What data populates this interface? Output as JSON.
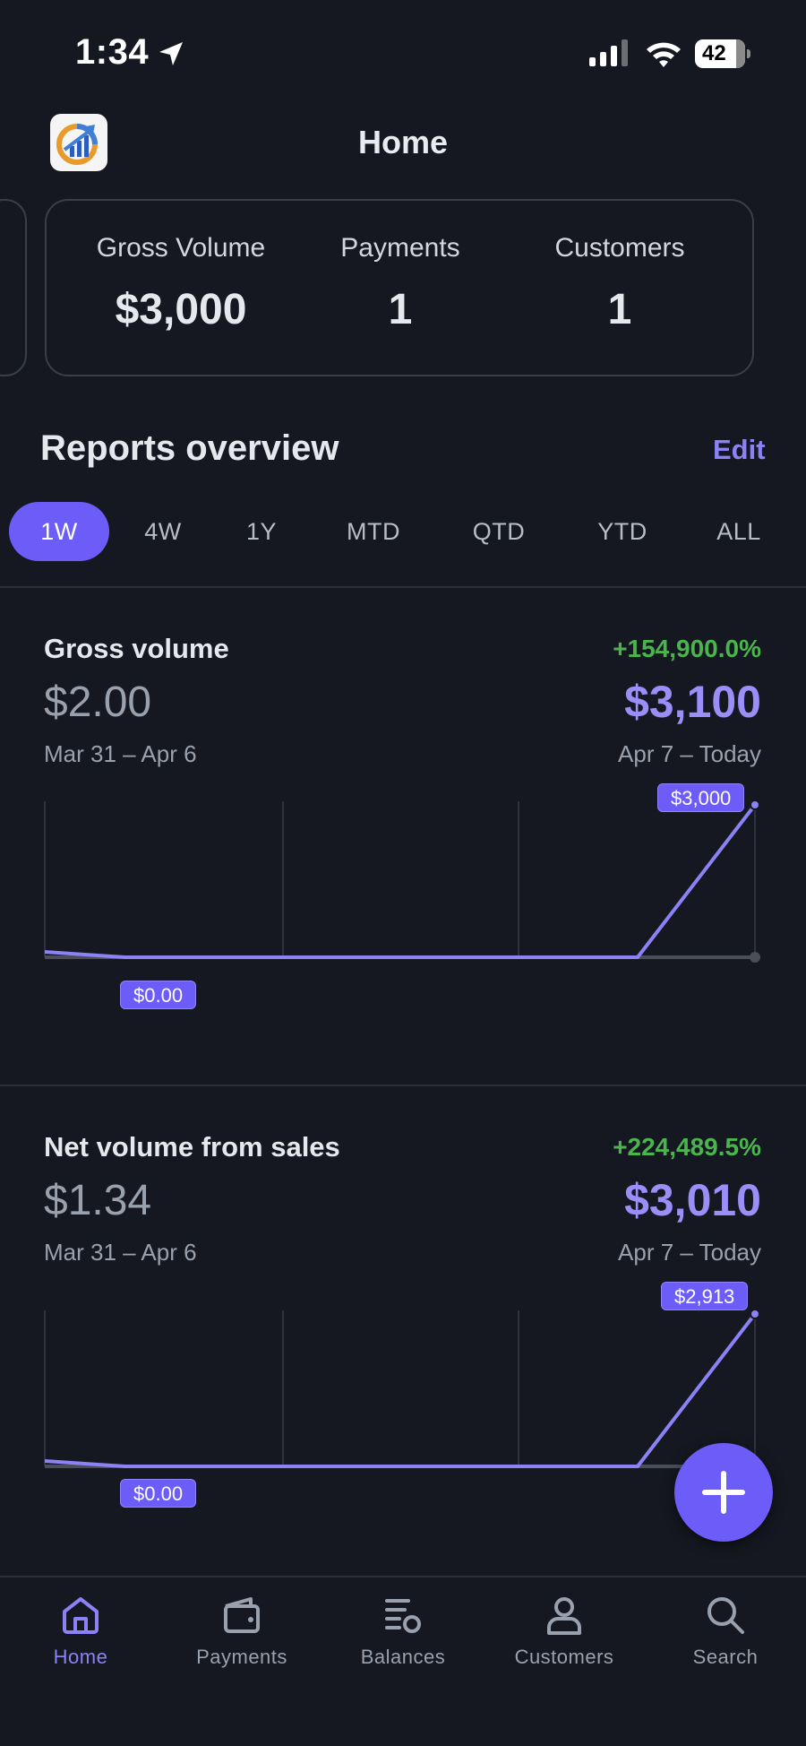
{
  "status_bar": {
    "time": "1:34",
    "battery": "42"
  },
  "header": {
    "title": "Home"
  },
  "metrics": [
    {
      "label": "Gross Volume",
      "value": "$3,000"
    },
    {
      "label": "Payments",
      "value": "1"
    },
    {
      "label": "Customers",
      "value": "1"
    }
  ],
  "reports": {
    "title": "Reports overview",
    "edit_label": "Edit",
    "periods": [
      "1W",
      "4W",
      "1Y",
      "MTD",
      "QTD",
      "YTD",
      "ALL"
    ],
    "active_period": "1W"
  },
  "gross_volume": {
    "title": "Gross volume",
    "change": "+154,900.0%",
    "previous_value": "$2.00",
    "previous_range": "Mar 31 – Apr 6",
    "current_value": "$3,100",
    "current_range": "Apr 7 – Today",
    "start_tag": "$0.00",
    "end_tag": "$3,000"
  },
  "net_volume": {
    "title": "Net volume from sales",
    "change": "+224,489.5%",
    "previous_value": "$1.34",
    "previous_range": "Mar 31 – Apr 6",
    "current_value": "$3,010",
    "current_range": "Apr 7 – Today",
    "start_tag": "$0.00",
    "end_tag": "$2,913"
  },
  "tabs": [
    {
      "label": "Home",
      "icon": "home-icon",
      "active": true
    },
    {
      "label": "Payments",
      "icon": "wallet-icon",
      "active": false
    },
    {
      "label": "Balances",
      "icon": "balances-icon",
      "active": false
    },
    {
      "label": "Customers",
      "icon": "person-icon",
      "active": false
    },
    {
      "label": "Search",
      "icon": "search-icon",
      "active": false
    }
  ],
  "colors": {
    "accent": "#6c5cf8",
    "positive": "#4cb44f",
    "background": "#151820"
  }
}
